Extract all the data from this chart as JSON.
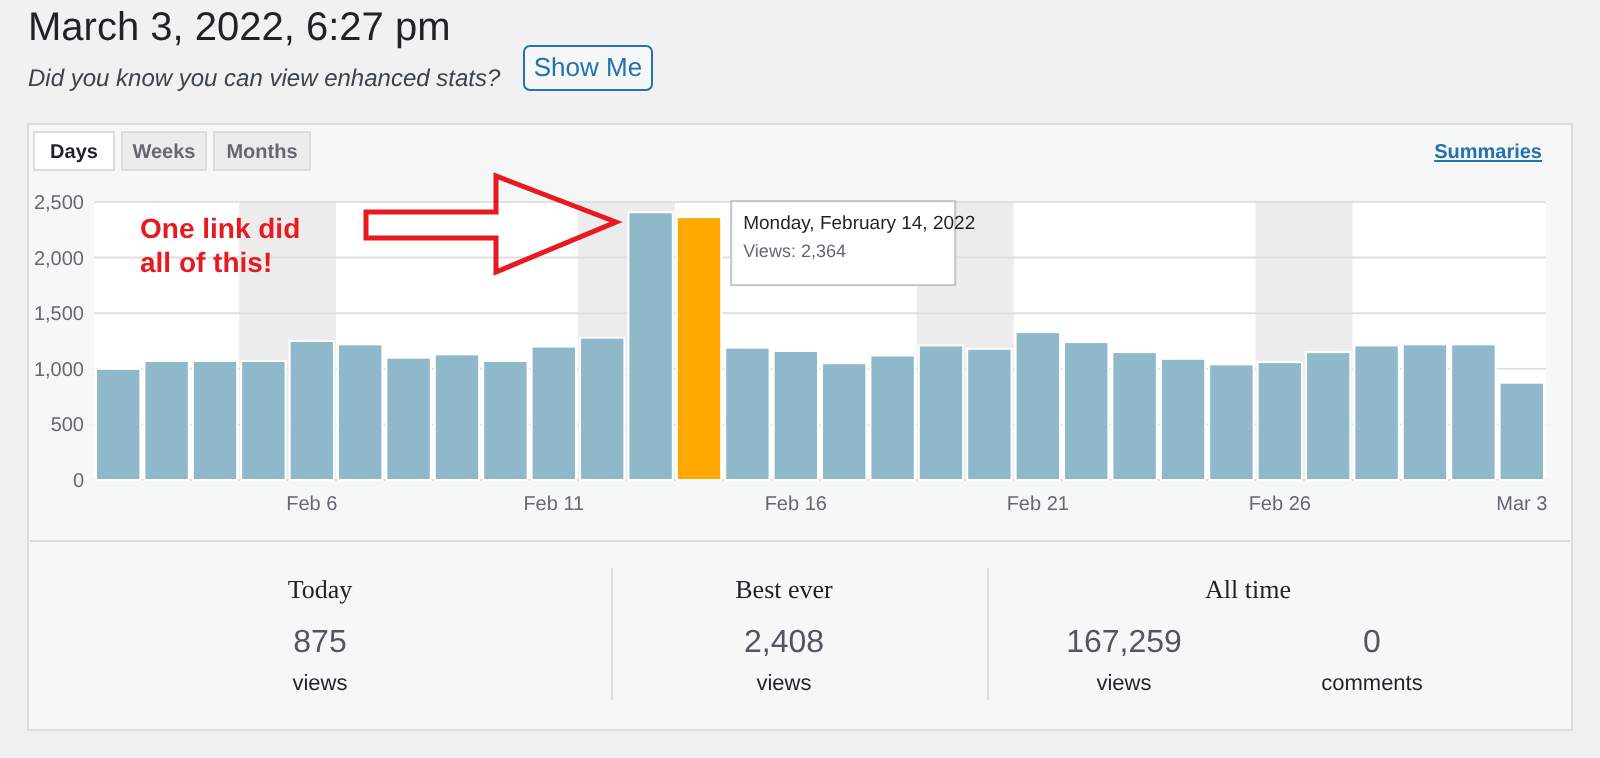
{
  "chart_data": {
    "type": "bar",
    "title": "March 3, 2022, 6:27 pm",
    "x": [
      "2022-02-02",
      "2022-02-03",
      "2022-02-04",
      "2022-02-05",
      "2022-02-06",
      "2022-02-07",
      "2022-02-08",
      "2022-02-09",
      "2022-02-10",
      "2022-02-11",
      "2022-02-12",
      "2022-02-13",
      "2022-02-14",
      "2022-02-15",
      "2022-02-16",
      "2022-02-17",
      "2022-02-18",
      "2022-02-19",
      "2022-02-20",
      "2022-02-21",
      "2022-02-22",
      "2022-02-23",
      "2022-02-24",
      "2022-02-25",
      "2022-02-26",
      "2022-02-27",
      "2022-02-28",
      "2022-03-01",
      "2022-03-02",
      "2022-03-03"
    ],
    "values": [
      1000,
      1070,
      1070,
      1070,
      1250,
      1220,
      1100,
      1130,
      1070,
      1200,
      1280,
      2408,
      2364,
      1190,
      1160,
      1050,
      1120,
      1210,
      1180,
      1330,
      1240,
      1150,
      1090,
      1040,
      1060,
      1150,
      1210,
      1220,
      1220,
      875
    ],
    "colors": [
      "#8fb8cb",
      "#8fb8cb",
      "#8fb8cb",
      "#8fb8cb",
      "#8fb8cb",
      "#8fb8cb",
      "#8fb8cb",
      "#8fb8cb",
      "#8fb8cb",
      "#8fb8cb",
      "#8fb8cb",
      "#8fb8cb",
      "#ffa800",
      "#8fb8cb",
      "#8fb8cb",
      "#8fb8cb",
      "#8fb8cb",
      "#8fb8cb",
      "#8fb8cb",
      "#8fb8cb",
      "#8fb8cb",
      "#8fb8cb",
      "#8fb8cb",
      "#8fb8cb",
      "#8fb8cb",
      "#8fb8cb",
      "#8fb8cb",
      "#8fb8cb",
      "#8fb8cb",
      "#8fb8cb"
    ],
    "xlim": [
      "2022-02-01T12:00",
      "2022-03-03T12:00"
    ],
    "xticks": [
      {
        "value": "2022-02-06",
        "label": "Feb 6"
      },
      {
        "value": "2022-02-11",
        "label": "Feb 11"
      },
      {
        "value": "2022-02-16",
        "label": "Feb 16"
      },
      {
        "value": "2022-02-21",
        "label": "Feb 21"
      },
      {
        "value": "2022-02-26",
        "label": "Feb 26"
      },
      {
        "value": "2022-03-03",
        "label": "Mar 3"
      }
    ],
    "ylim": [
      0,
      2500
    ],
    "yticks": [
      {
        "value": 0,
        "label": "0"
      },
      {
        "value": 500,
        "label": "500"
      },
      {
        "value": 1000,
        "label": "1,000"
      },
      {
        "value": 1500,
        "label": "1,500"
      },
      {
        "value": 2000,
        "label": "2,000"
      },
      {
        "value": 2500,
        "label": "2,500"
      }
    ],
    "grid": "y",
    "bands": [
      {
        "axis": "x",
        "from": "2022-02-04T12:00",
        "to": "2022-02-06T12:00",
        "color": "#ececec"
      },
      {
        "axis": "x",
        "from": "2022-02-11T12:00",
        "to": "2022-02-13T12:00",
        "color": "#ececec"
      },
      {
        "axis": "x",
        "from": "2022-02-18T12:00",
        "to": "2022-02-20T12:00",
        "color": "#ececec"
      },
      {
        "axis": "x",
        "from": "2022-02-25T12:00",
        "to": "2022-02-27T12:00",
        "color": "#ececec"
      }
    ],
    "annotations": [
      "Did you know you can view enhanced stats?",
      "Show Me",
      "Days",
      "Weeks",
      "Months",
      "Summaries",
      "One link did all of this!",
      {
        "text": "Monday, February 14, 2022",
        "x": "2022-02-14",
        "y": 2364
      },
      {
        "text": "Views: 2,364",
        "x": "2022-02-14",
        "y": 2364
      },
      "Today",
      "875",
      "views",
      "Best ever",
      "2,408",
      "views",
      "All time",
      "167,259",
      "views",
      "0",
      "comments"
    ]
  }
}
